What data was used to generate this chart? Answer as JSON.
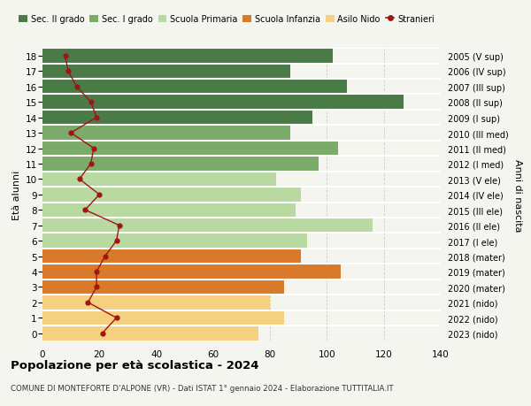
{
  "ages": [
    18,
    17,
    16,
    15,
    14,
    13,
    12,
    11,
    10,
    9,
    8,
    7,
    6,
    5,
    4,
    3,
    2,
    1,
    0
  ],
  "bar_values": [
    102,
    87,
    107,
    127,
    95,
    87,
    104,
    97,
    82,
    91,
    89,
    116,
    93,
    91,
    105,
    85,
    80,
    85,
    76
  ],
  "stranieri": [
    8,
    9,
    12,
    17,
    19,
    10,
    18,
    17,
    13,
    20,
    15,
    27,
    26,
    22,
    19,
    19,
    16,
    26,
    21
  ],
  "right_labels": [
    "2005 (V sup)",
    "2006 (IV sup)",
    "2007 (III sup)",
    "2008 (II sup)",
    "2009 (I sup)",
    "2010 (III med)",
    "2011 (II med)",
    "2012 (I med)",
    "2013 (V ele)",
    "2014 (IV ele)",
    "2015 (III ele)",
    "2016 (II ele)",
    "2017 (I ele)",
    "2018 (mater)",
    "2019 (mater)",
    "2020 (mater)",
    "2021 (nido)",
    "2022 (nido)",
    "2023 (nido)"
  ],
  "age_colors": [
    "#4a7a45",
    "#4a7a45",
    "#4a7a45",
    "#4a7a45",
    "#4a7a45",
    "#7aab6a",
    "#7aab6a",
    "#7aab6a",
    "#b8d9a0",
    "#b8d9a0",
    "#b8d9a0",
    "#b8d9a0",
    "#b8d9a0",
    "#d97a2a",
    "#d97a2a",
    "#d97a2a",
    "#f5d080",
    "#f5d080",
    "#f5d080"
  ],
  "stranieri_color": "#a01515",
  "title": "Popolazione per età scolastica - 2024",
  "subtitle": "COMUNE DI MONTEFORTE D'ALPONE (VR) - Dati ISTAT 1° gennaio 2024 - Elaborazione TUTTITALIA.IT",
  "ylabel_left": "Età alunni",
  "ylabel_right": "Anni di nascita",
  "legend_labels": [
    "Sec. II grado",
    "Sec. I grado",
    "Scuola Primaria",
    "Scuola Infanzia",
    "Asilo Nido",
    "Stranieri"
  ],
  "legend_colors": [
    "#4a7a45",
    "#7aab6a",
    "#b8d9a0",
    "#d97a2a",
    "#f5d080",
    "#a01515"
  ],
  "xlim": [
    0,
    140
  ],
  "background_color": "#f5f5f0",
  "grid_color": "#cccccc"
}
